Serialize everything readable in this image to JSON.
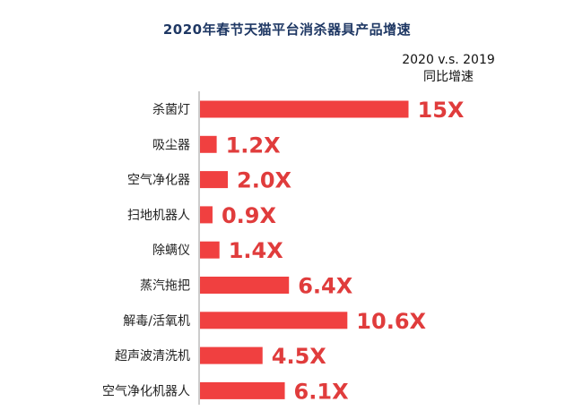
{
  "chart_data": {
    "type": "bar",
    "orientation": "horizontal",
    "title": "2020年春节天猫平台消杀器具产品增速",
    "legend_line1": "2020 v.s. 2019",
    "legend_line2": "同比增速",
    "bar_color": "#f04040",
    "title_color": "#1f3864",
    "label_color": "#e03c3c",
    "categories": [
      "杀菌灯",
      "吸尘器",
      "空气净化器",
      "扫地机器人",
      "除螨仪",
      "蒸汽拖把",
      "解毒/活氧机",
      "超声波清洗机",
      "空气净化机器人"
    ],
    "values": [
      15,
      1.2,
      2.0,
      0.9,
      1.4,
      6.4,
      10.6,
      4.5,
      6.1
    ],
    "value_labels": [
      "15X",
      "1.2X",
      "2.0X",
      "0.9X",
      "1.4X",
      "6.4X",
      "10.6X",
      "4.5X",
      "6.1X"
    ]
  }
}
